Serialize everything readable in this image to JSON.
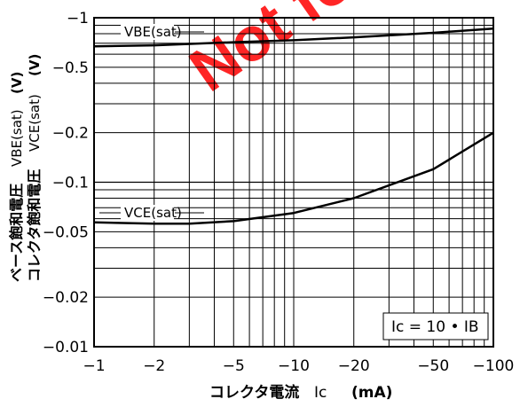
{
  "watermark": {
    "text": "Not for",
    "color": "#ff0000"
  },
  "chart_data": {
    "type": "line",
    "x_scale": "log",
    "y_scale": "log",
    "xlim": [
      -1,
      -100
    ],
    "ylim": [
      -0.01,
      -1
    ],
    "grid": true,
    "x_ticks": [
      {
        "value": -1,
        "label": "−1"
      },
      {
        "value": -2,
        "label": "−2"
      },
      {
        "value": -5,
        "label": "−5"
      },
      {
        "value": -10,
        "label": "−10"
      },
      {
        "value": -20,
        "label": "−20"
      },
      {
        "value": -50,
        "label": "−50"
      },
      {
        "value": -100,
        "label": "−100"
      }
    ],
    "y_ticks": [
      {
        "value": -1,
        "label": "−1"
      },
      {
        "value": -0.5,
        "label": "−0.5"
      },
      {
        "value": -0.2,
        "label": "−0.2"
      },
      {
        "value": -0.1,
        "label": "−0.1"
      },
      {
        "value": -0.05,
        "label": "−0.05"
      },
      {
        "value": -0.02,
        "label": "−0.02"
      },
      {
        "value": -0.01,
        "label": "−0.01"
      }
    ],
    "xlabel": {
      "main": "コレクタ電流",
      "symbol": "Ic",
      "unit": "(mA)"
    },
    "ylabel": {
      "line1": "ベース飽和電圧",
      "line1_symbol": "VBE(sat)",
      "line1_unit": "(V)",
      "line2": "コレクタ飽和電圧",
      "line2_symbol": "VCE(sat)",
      "line2_unit": "(V)"
    },
    "annotation": "Ic = 10 • IB",
    "series": [
      {
        "name": "VBE(sat)",
        "x": [
          -1,
          -2,
          -5,
          -10,
          -20,
          -50,
          -100
        ],
        "y": [
          -0.67,
          -0.68,
          -0.71,
          -0.73,
          -0.76,
          -0.81,
          -0.86
        ]
      },
      {
        "name": "VCE(sat)",
        "x": [
          -1,
          -2,
          -3,
          -5,
          -10,
          -20,
          -50,
          -100
        ],
        "y": [
          -0.057,
          -0.056,
          -0.056,
          -0.058,
          -0.065,
          -0.08,
          -0.12,
          -0.2
        ]
      }
    ]
  }
}
